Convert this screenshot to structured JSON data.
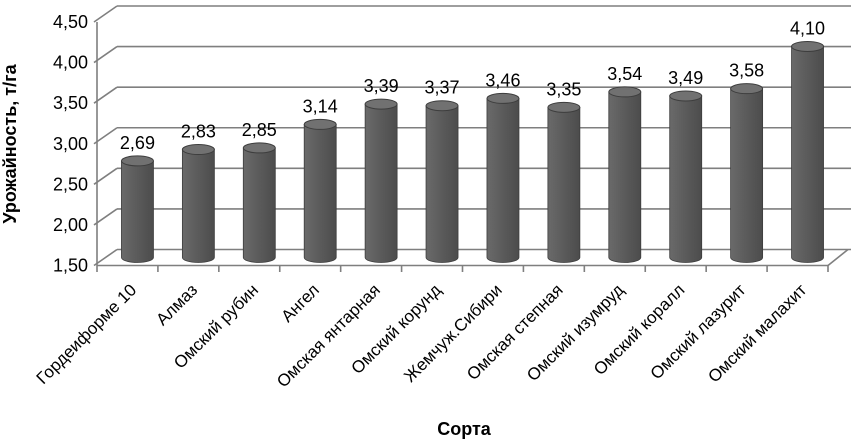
{
  "chart_data": {
    "type": "bar",
    "bar_style": "3d-cylinder",
    "title": "",
    "xlabel": "Сорта",
    "ylabel": "Урожайность, т/га",
    "categories": [
      "Гордеиформе 10",
      "Алмаз",
      "Омский рубин",
      "Ангел",
      "Омская янтарная",
      "Омский корунд",
      "Жемчуж.Сибири",
      "Омская степная",
      "Омский изумруд",
      "Омский коралл",
      "Омский лазурит",
      "Омский малахит"
    ],
    "values": [
      2.69,
      2.83,
      2.85,
      3.14,
      3.39,
      3.37,
      3.46,
      3.35,
      3.54,
      3.49,
      3.58,
      4.1
    ],
    "value_labels": [
      "2,69",
      "2,83",
      "2,85",
      "3,14",
      "3,39",
      "3,37",
      "3,46",
      "3,35",
      "3,54",
      "3,49",
      "3,58",
      "4,10"
    ],
    "ylim": [
      1.5,
      4.5
    ],
    "yticks": [
      1.5,
      2.0,
      2.5,
      3.0,
      3.5,
      4.0,
      4.5
    ],
    "ytick_labels": [
      "1,50",
      "2,00",
      "2,50",
      "3,00",
      "3,50",
      "4,00",
      "4,50"
    ],
    "grid": true,
    "legend": "none",
    "colors": {
      "bar": "#595959",
      "bar_light": "#6a6a6a",
      "bar_dark": "#4c4c4c",
      "bar_top": "#717171",
      "bar_outline": "#3d3d3d",
      "gridline": "#7f7f7f",
      "axis": "#7f7f7f",
      "text": "#000000",
      "background": "#ffffff"
    }
  }
}
